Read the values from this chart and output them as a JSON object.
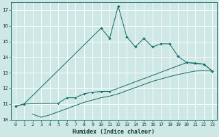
{
  "xlabel": "Humidex (Indice chaleur)",
  "bg_color": "#cde8e5",
  "grid_color": "#b0d8d4",
  "line_color": "#1a6e6a",
  "xlim": [
    -0.5,
    23.5
  ],
  "ylim": [
    10.0,
    17.5
  ],
  "yticks": [
    10,
    11,
    12,
    13,
    14,
    15,
    16,
    17
  ],
  "xticks": [
    0,
    1,
    2,
    3,
    4,
    5,
    6,
    7,
    8,
    9,
    10,
    11,
    12,
    13,
    14,
    15,
    16,
    17,
    18,
    19,
    20,
    21,
    22,
    23
  ],
  "jagged_x": [
    0,
    1,
    10,
    11,
    12,
    13,
    14,
    15,
    16,
    17,
    18,
    19,
    20,
    21,
    22,
    23
  ],
  "jagged_y": [
    10.85,
    11.0,
    15.85,
    15.2,
    17.25,
    15.3,
    14.65,
    15.2,
    14.65,
    14.85,
    14.85,
    14.05,
    13.65,
    13.6,
    13.55,
    13.1
  ],
  "mid_x": [
    0,
    1,
    5,
    6,
    7,
    8,
    9,
    10,
    11,
    20,
    21,
    22,
    23
  ],
  "mid_y": [
    10.85,
    11.0,
    11.05,
    11.4,
    11.4,
    11.65,
    11.75,
    11.8,
    11.8,
    13.65,
    13.6,
    13.55,
    13.1
  ],
  "low_x": [
    2,
    3,
    4,
    5,
    6,
    7,
    8,
    9,
    10,
    11,
    12,
    13,
    14,
    15,
    16,
    17,
    18,
    19,
    20,
    21,
    22,
    23
  ],
  "low_y": [
    10.35,
    10.15,
    10.3,
    10.5,
    10.7,
    10.9,
    11.1,
    11.25,
    11.4,
    11.5,
    11.65,
    11.85,
    12.05,
    12.25,
    12.45,
    12.6,
    12.75,
    12.88,
    13.0,
    13.1,
    13.15,
    13.1
  ]
}
